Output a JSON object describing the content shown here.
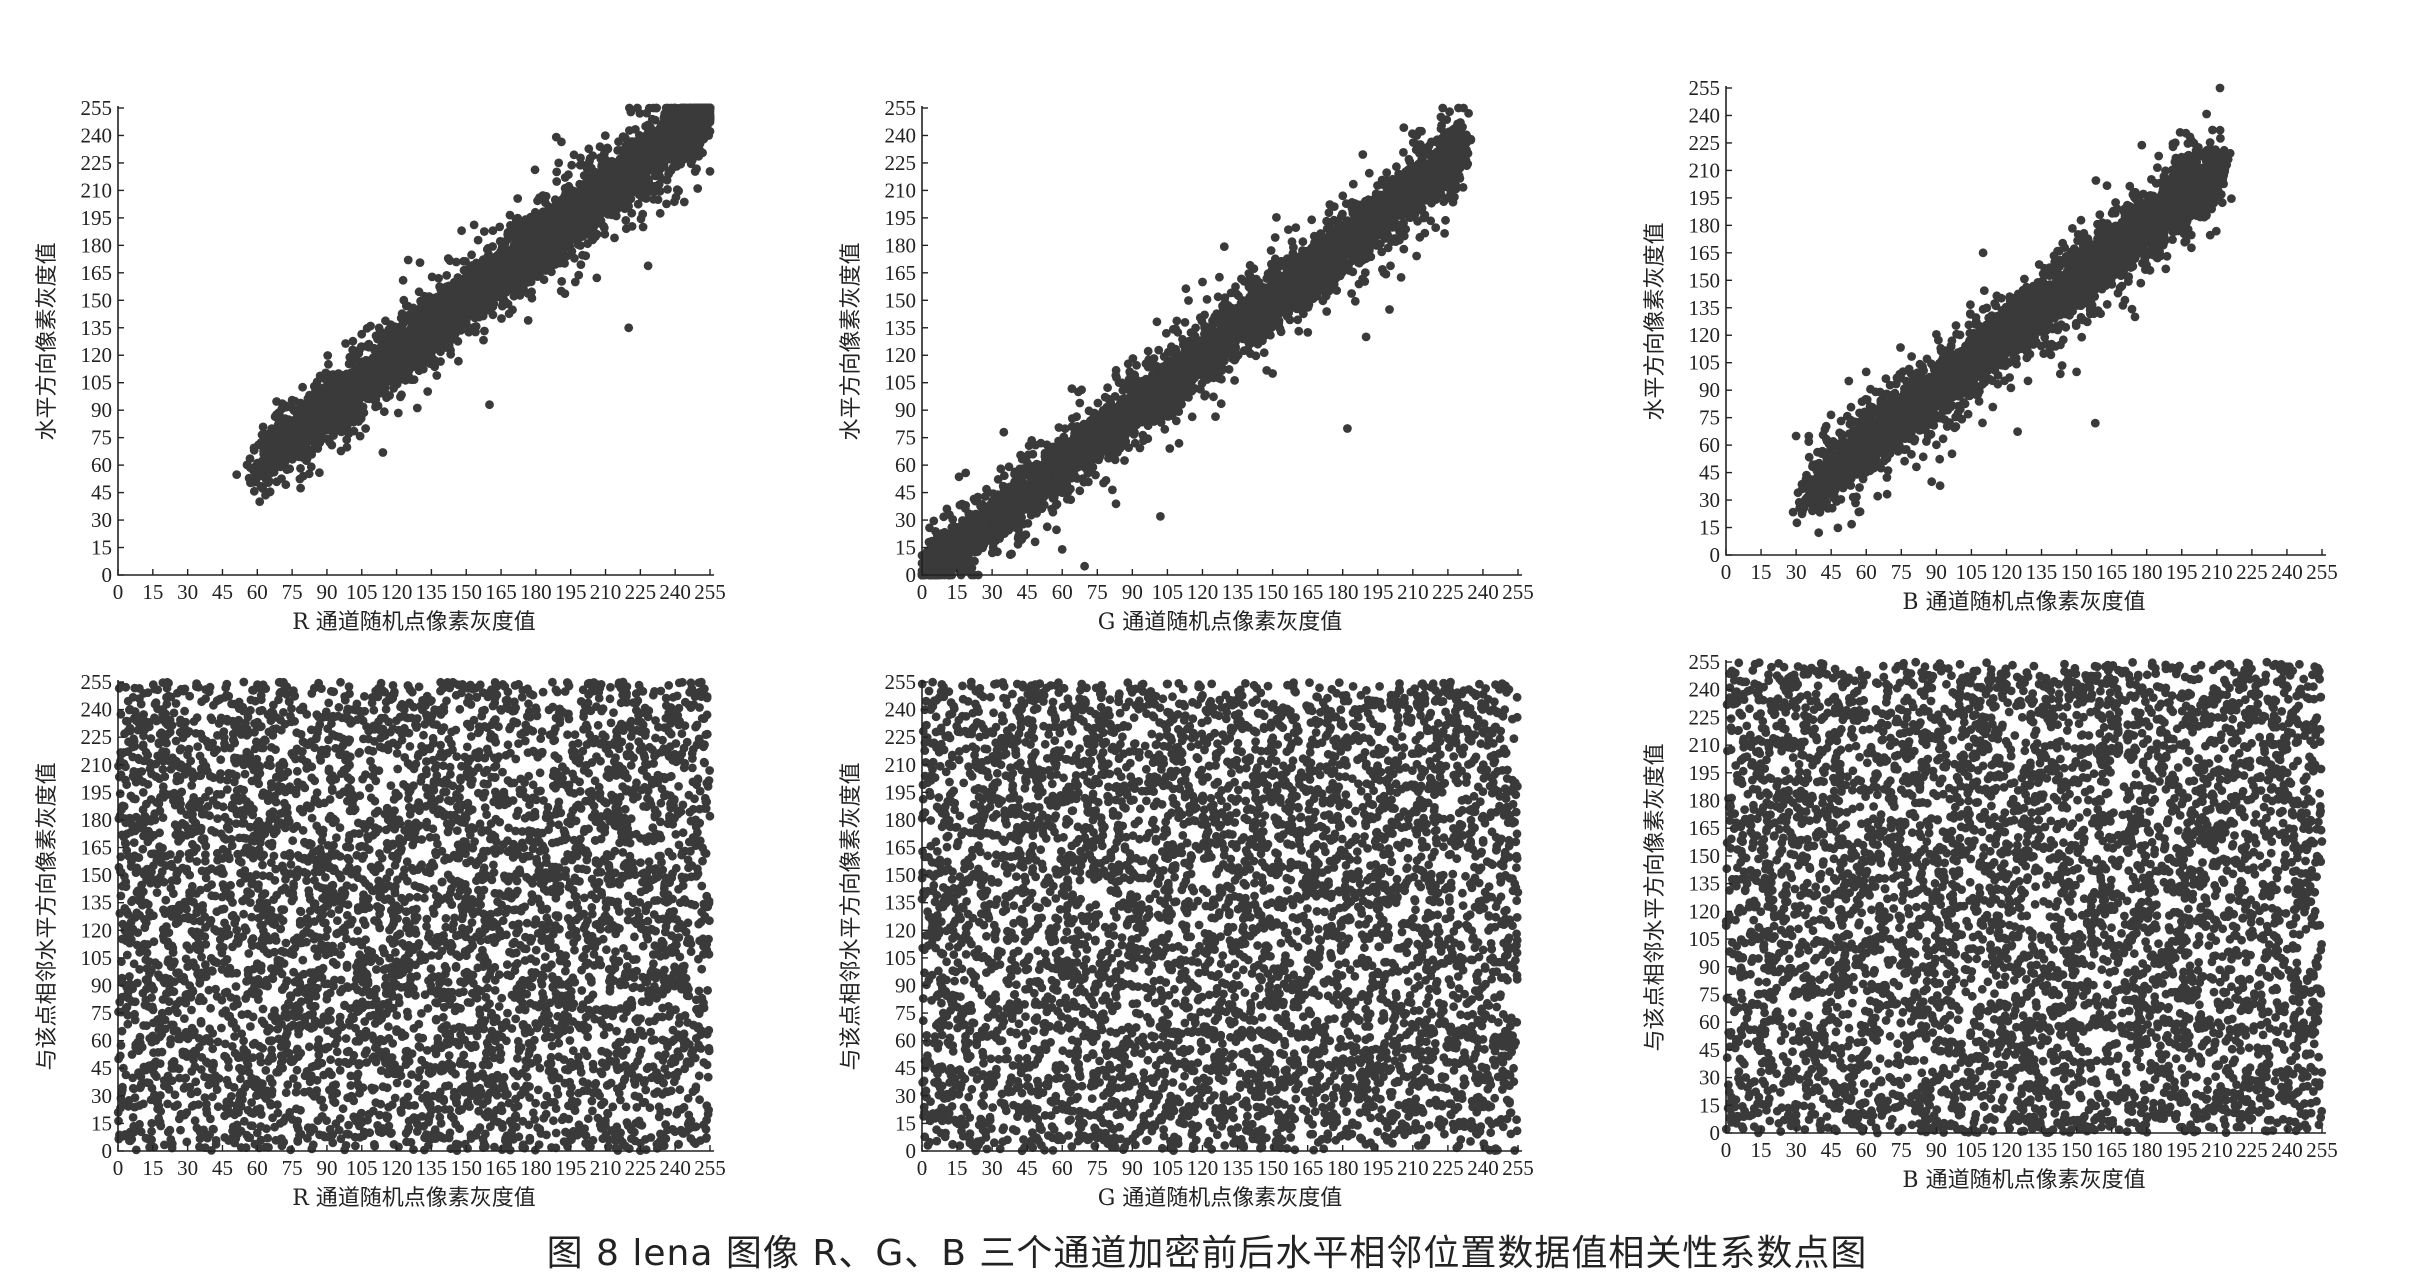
{
  "caption": "图 8 lena 图像 R、G、B 三个通道加密前后水平相邻位置数据值相关性系数点图",
  "point_color": "#3a3a3a",
  "axis_color": "#222222",
  "chart_data": [
    {
      "type": "scatter",
      "channel": "R",
      "state": "before encryption",
      "xlabel": "R 通道随机点像素灰度值",
      "ylabel": "水平方向像素灰度值",
      "xlim": [
        0,
        255
      ],
      "ylim": [
        0,
        255
      ],
      "xticks": [
        0,
        15,
        30,
        45,
        60,
        75,
        90,
        105,
        120,
        135,
        150,
        165,
        180,
        195,
        210,
        225,
        240,
        255
      ],
      "yticks": [
        0,
        15,
        30,
        45,
        60,
        75,
        90,
        105,
        120,
        135,
        150,
        165,
        180,
        195,
        210,
        225,
        240,
        255
      ],
      "grid": false,
      "distribution": "strong positive linear correlation along y = x",
      "x_range": [
        60,
        255
      ],
      "approx_n_points": 5000,
      "outliers": [
        [
          160,
          93
        ],
        [
          220,
          135
        ],
        [
          175,
          155
        ],
        [
          148,
          188
        ],
        [
          125,
          172
        ],
        [
          95,
          110
        ],
        [
          168,
          148
        ],
        [
          197,
          160
        ]
      ]
    },
    {
      "type": "scatter",
      "channel": "G",
      "state": "before encryption",
      "xlabel": "G 通道随机点像素灰度值",
      "ylabel": "水平方向像素灰度值",
      "xlim": [
        0,
        255
      ],
      "ylim": [
        0,
        255
      ],
      "xticks": [
        0,
        15,
        30,
        45,
        60,
        75,
        90,
        105,
        120,
        135,
        150,
        165,
        180,
        195,
        210,
        225,
        240,
        255
      ],
      "yticks": [
        0,
        15,
        30,
        45,
        60,
        75,
        90,
        105,
        120,
        135,
        150,
        165,
        180,
        195,
        210,
        225,
        240,
        255
      ],
      "grid": false,
      "distribution": "strong positive linear correlation along y = x",
      "x_range": [
        0,
        230
      ],
      "approx_n_points": 5000,
      "outliers": [
        [
          182,
          80
        ],
        [
          102,
          32
        ],
        [
          60,
          14
        ],
        [
          190,
          130
        ],
        [
          120,
          160
        ],
        [
          35,
          78
        ],
        [
          150,
          110
        ],
        [
          200,
          145
        ]
      ]
    },
    {
      "type": "scatter",
      "channel": "B",
      "state": "before encryption",
      "xlabel": "B 通道随机点像素灰度值",
      "ylabel": "水平方向像素灰度值",
      "xlim": [
        0,
        255
      ],
      "ylim": [
        0,
        255
      ],
      "xticks": [
        0,
        15,
        30,
        45,
        60,
        75,
        90,
        105,
        120,
        135,
        150,
        165,
        180,
        195,
        210,
        225,
        240,
        255
      ],
      "yticks": [
        0,
        15,
        30,
        45,
        60,
        75,
        90,
        105,
        120,
        135,
        150,
        165,
        180,
        195,
        210,
        225,
        240,
        255
      ],
      "grid": false,
      "distribution": "strong positive linear correlation along y = x",
      "x_range": [
        35,
        210
      ],
      "approx_n_points": 5000,
      "outliers": [
        [
          158,
          72
        ],
        [
          88,
          40
        ],
        [
          30,
          65
        ],
        [
          110,
          165
        ],
        [
          150,
          100
        ],
        [
          60,
          100
        ],
        [
          175,
          130
        ]
      ]
    },
    {
      "type": "scatter",
      "channel": "R",
      "state": "after encryption",
      "xlabel": "R 通道随机点像素灰度值",
      "ylabel": "与该点相邻水平方向像素灰度值",
      "xlim": [
        0,
        255
      ],
      "ylim": [
        0,
        255
      ],
      "xticks": [
        0,
        15,
        30,
        45,
        60,
        75,
        90,
        105,
        120,
        135,
        150,
        165,
        180,
        195,
        210,
        225,
        240,
        255
      ],
      "yticks": [
        0,
        15,
        30,
        45,
        60,
        75,
        90,
        105,
        120,
        135,
        150,
        165,
        180,
        195,
        210,
        225,
        240,
        255
      ],
      "grid": false,
      "distribution": "uniform random over [0,255] x [0,255]",
      "approx_n_points": 5000
    },
    {
      "type": "scatter",
      "channel": "G",
      "state": "after encryption",
      "xlabel": "G 通道随机点像素灰度值",
      "ylabel": "与该点相邻水平方向像素灰度值",
      "xlim": [
        0,
        255
      ],
      "ylim": [
        0,
        255
      ],
      "xticks": [
        0,
        15,
        30,
        45,
        60,
        75,
        90,
        105,
        120,
        135,
        150,
        165,
        180,
        195,
        210,
        225,
        240,
        255
      ],
      "yticks": [
        0,
        15,
        30,
        45,
        60,
        75,
        90,
        105,
        120,
        135,
        150,
        165,
        180,
        195,
        210,
        225,
        240,
        255
      ],
      "grid": false,
      "distribution": "uniform random over [0,255] x [0,255]",
      "approx_n_points": 5000
    },
    {
      "type": "scatter",
      "channel": "B",
      "state": "after encryption",
      "xlabel": "B 通道随机点像素灰度值",
      "ylabel": "与该点相邻水平方向像素灰度值",
      "xlim": [
        0,
        255
      ],
      "ylim": [
        0,
        255
      ],
      "xticks": [
        0,
        15,
        30,
        45,
        60,
        75,
        90,
        105,
        120,
        135,
        150,
        165,
        180,
        195,
        210,
        225,
        240,
        255
      ],
      "yticks": [
        0,
        15,
        30,
        45,
        60,
        75,
        90,
        105,
        120,
        135,
        150,
        165,
        180,
        195,
        210,
        225,
        240,
        255
      ],
      "grid": false,
      "distribution": "uniform random over [0,255] x [0,255]",
      "approx_n_points": 5000
    }
  ]
}
